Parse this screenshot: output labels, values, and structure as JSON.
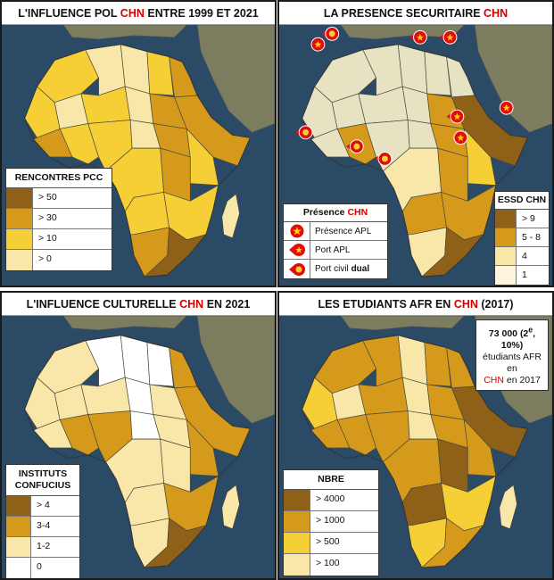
{
  "colors": {
    "ocean": "#2a4a66",
    "land": "#7b7d5e",
    "c_dark": "#8e6018",
    "c_mid": "#d59a1c",
    "c_yellow": "#f6cf37",
    "c_light": "#f8e7a8",
    "c_white": "#ffffff",
    "china_red": "#e10d0d"
  },
  "panels": [
    {
      "id": "pol",
      "title_pre": "L'INFLUENCE POL ",
      "title_red": "CHN",
      "title_post": " ENTRE 1999 ET 2021",
      "legend": {
        "header": "RENCONTRES PCC",
        "items": [
          {
            "label": "> 50",
            "color": "#8e6018"
          },
          {
            "label": "> 30",
            "color": "#d59a1c"
          },
          {
            "label": "> 10",
            "color": "#f6cf37"
          },
          {
            "label": "> 0",
            "color": "#f8e7a8"
          }
        ]
      }
    },
    {
      "id": "sec",
      "title_pre": "LA PRESENCE SECURITAIRE ",
      "title_red": "CHN",
      "title_post": "",
      "presence_legend": {
        "header_pre": "Présence ",
        "header_red": "CHN",
        "items": [
          {
            "label": "Présence APL",
            "icon": "apl-presence-icon"
          },
          {
            "label": "Port APL",
            "icon": "apl-port-icon"
          },
          {
            "label_pre": "Port civil ",
            "label_bold": "dual",
            "icon": "dual-port-icon"
          }
        ]
      },
      "legend": {
        "header": "ESSD CHN",
        "items": [
          {
            "label": "> 9",
            "color": "#8e6018"
          },
          {
            "label": "5 - 8",
            "color": "#d59a1c"
          },
          {
            "label": "4",
            "color": "#f8e7a8"
          },
          {
            "label": "1",
            "color": "#fdf6dc"
          }
        ]
      }
    },
    {
      "id": "cult",
      "title_pre": "L'INFLUENCE CULTURELLE ",
      "title_red": "CHN",
      "title_post": " EN 2021",
      "legend": {
        "header": "INSTITUTS CONFUCIUS",
        "items": [
          {
            "label": "> 4",
            "color": "#8e6018"
          },
          {
            "label": "3-4",
            "color": "#d59a1c"
          },
          {
            "label": "1-2",
            "color": "#f8e7a8"
          },
          {
            "label": "0",
            "color": "#ffffff"
          }
        ]
      }
    },
    {
      "id": "etu",
      "title_pre": "LES ETUDIANTS AFR EN ",
      "title_red": "CHN",
      "title_post": " (2017)",
      "stat": {
        "line1_pre": "73 000 (2",
        "line1_sup": "e",
        "line1_post": ",",
        "line2": "10%)",
        "line3": "étudiants AFR en",
        "line4_red": "CHN",
        "line4_post": " en 2017"
      },
      "legend": {
        "header": "NBRE",
        "items": [
          {
            "label": "> 4000",
            "color": "#8e6018"
          },
          {
            "label": "> 1000",
            "color": "#d59a1c"
          },
          {
            "label": "> 500",
            "color": "#f6cf37"
          },
          {
            "label": "> 100",
            "color": "#f8e7a8"
          }
        ]
      }
    }
  ]
}
